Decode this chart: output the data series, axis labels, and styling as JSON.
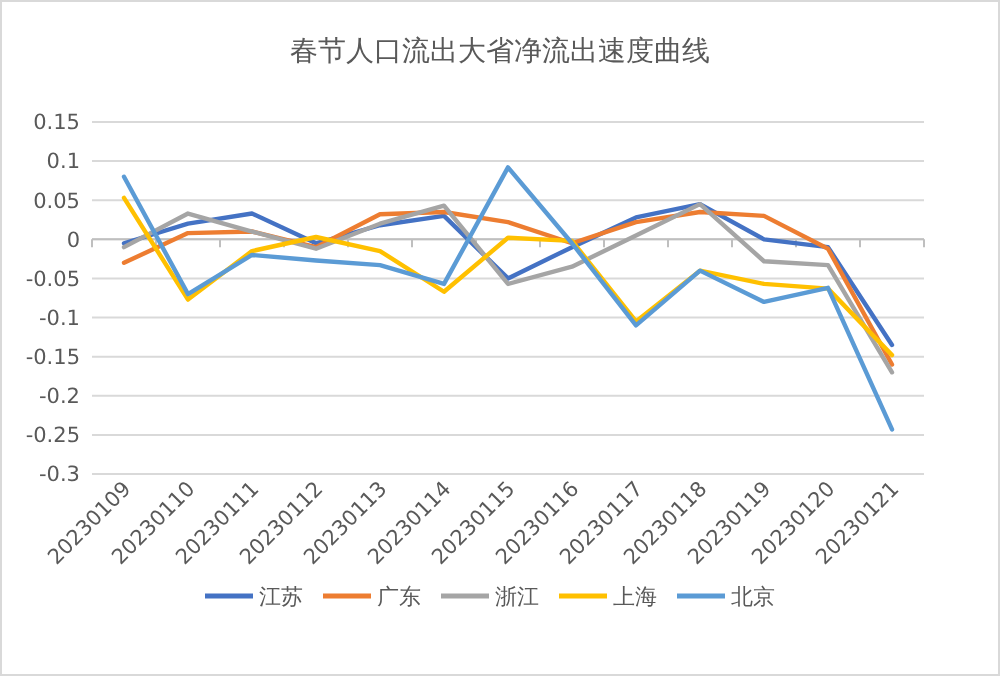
{
  "chart_data": {
    "type": "line",
    "title": "春节人口流出大省净流出速度曲线",
    "categories": [
      "20230109",
      "20230110",
      "20230111",
      "20230112",
      "20230113",
      "20230114",
      "20230115",
      "20230116",
      "20230117",
      "20230118",
      "20230119",
      "20230120",
      "20230121"
    ],
    "series": [
      {
        "name": "江苏",
        "color": "#4472c4",
        "values": [
          -0.005,
          0.02,
          0.033,
          -0.005,
          0.018,
          0.03,
          -0.05,
          -0.01,
          0.028,
          0.045,
          0.0,
          -0.01,
          -0.135
        ]
      },
      {
        "name": "广东",
        "color": "#ed7d31",
        "values": [
          -0.03,
          0.008,
          0.01,
          -0.01,
          0.032,
          0.035,
          0.022,
          -0.005,
          0.022,
          0.035,
          0.03,
          -0.012,
          -0.16
        ]
      },
      {
        "name": "浙江",
        "color": "#a5a5a5",
        "values": [
          -0.01,
          0.033,
          0.01,
          -0.012,
          0.02,
          0.043,
          -0.057,
          -0.035,
          0.005,
          0.045,
          -0.028,
          -0.033,
          -0.17
        ]
      },
      {
        "name": "上海",
        "color": "#ffc000",
        "values": [
          0.053,
          -0.077,
          -0.015,
          0.003,
          -0.015,
          -0.067,
          0.002,
          -0.002,
          -0.105,
          -0.04,
          -0.057,
          -0.063,
          -0.148
        ]
      },
      {
        "name": "北京",
        "color": "#5b9bd5",
        "values": [
          0.08,
          -0.07,
          -0.02,
          -0.027,
          -0.033,
          -0.057,
          0.092,
          -0.005,
          -0.11,
          -0.04,
          -0.08,
          -0.062,
          -0.243
        ]
      }
    ],
    "ylim": [
      -0.3,
      0.15
    ],
    "yticks": [
      -0.3,
      -0.25,
      -0.2,
      -0.15,
      -0.1,
      -0.05,
      0,
      0.05,
      0.1,
      0.15
    ],
    "grid": "y",
    "legend": "bottom",
    "marker": "none",
    "line_style": "solid"
  }
}
